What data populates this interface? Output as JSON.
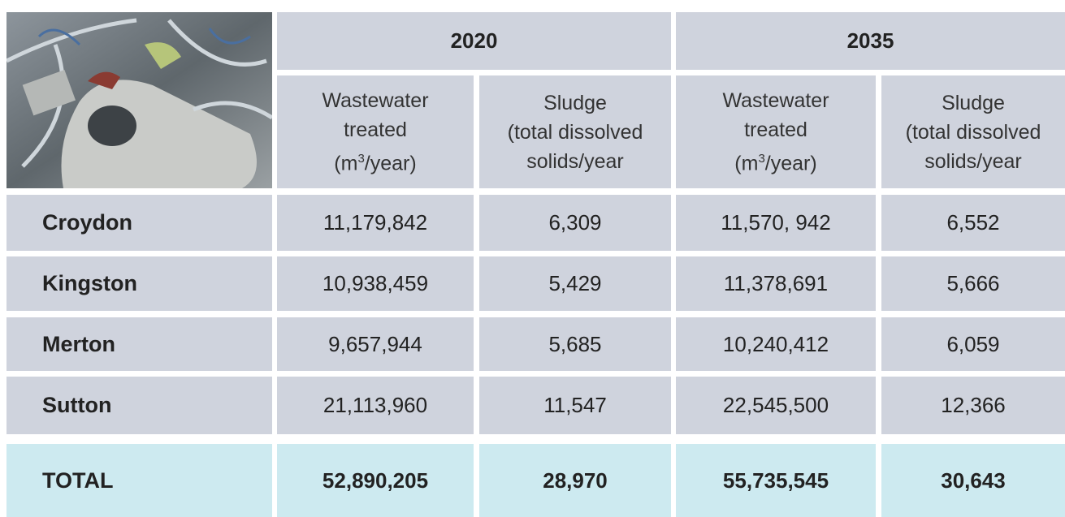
{
  "table": {
    "years": [
      "2020",
      "2035"
    ],
    "subheaders": [
      {
        "lines": [
          "Wastewater",
          "treated"
        ],
        "unit": [
          "(m",
          "3",
          "/year)"
        ]
      },
      {
        "lines": [
          "Sludge",
          "(total dissolved",
          "solids/year"
        ]
      },
      {
        "lines": [
          "Wastewater",
          "treated"
        ],
        "unit": [
          "(m",
          "3",
          "/year)"
        ]
      },
      {
        "lines": [
          "Sludge",
          "(total dissolved",
          "solids/year"
        ]
      }
    ],
    "rows": [
      [
        "Croydon",
        "11,179,842",
        "6,309",
        "11,570, 942",
        "6,552"
      ],
      [
        "Kingston",
        "10,938,459",
        "5,429",
        "11,378,691",
        "5,666"
      ],
      [
        "Merton",
        "9,657,944",
        "5,685",
        "10,240,412",
        "6,059"
      ],
      [
        "Sutton",
        "21,113,960",
        "11,547",
        "22,545,500",
        "12,366"
      ]
    ],
    "total": [
      "TOTAL",
      "52,890,205",
      "28,970",
      "55,735,545",
      "30,643"
    ]
  }
}
